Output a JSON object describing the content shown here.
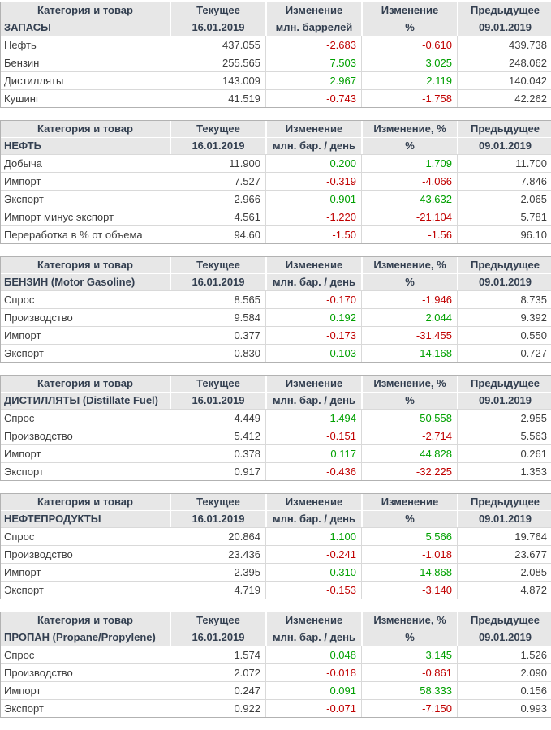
{
  "report_title": "EIA weekly petroleum data (Russian)",
  "colors": {
    "positive_change": "#00a000",
    "negative_change": "#c00000",
    "header_background": "#e7e7e7",
    "header_text": "#333f50",
    "body_text": "#3c3c3c"
  },
  "dates": {
    "current": "16.01.2019",
    "previous": "09.01.2019"
  },
  "tables": [
    {
      "id": "stocks",
      "header_row1": [
        "Категория и товар",
        "Текущее",
        "Изменение",
        "Изменение",
        "Предыдущее"
      ],
      "header_row2": [
        "ЗАПАСЫ",
        "16.01.2019",
        "млн. баррелей",
        "%",
        "09.01.2019"
      ],
      "rows": [
        [
          "Нефть",
          "437.055",
          "-2.683",
          "-0.610",
          "439.738"
        ],
        [
          "Бензин",
          "255.565",
          "7.503",
          "3.025",
          "248.062"
        ],
        [
          "Дистилляты",
          "143.009",
          "2.967",
          "2.119",
          "140.042"
        ],
        [
          "Кушинг",
          "41.519",
          "-0.743",
          "-1.758",
          "42.262"
        ]
      ]
    },
    {
      "id": "crude-oil",
      "header_row1": [
        "Категория и товар",
        "Текущее",
        "Изменение",
        "Изменение, %",
        "Предыдущее"
      ],
      "header_row2": [
        "НЕФТЬ",
        "16.01.2019",
        "млн. бар. / день",
        "%",
        "09.01.2019"
      ],
      "rows": [
        [
          "Добыча",
          "11.900",
          "0.200",
          "1.709",
          "11.700"
        ],
        [
          "Импорт",
          "7.527",
          "-0.319",
          "-4.066",
          "7.846"
        ],
        [
          "Экспорт",
          "2.966",
          "0.901",
          "43.632",
          "2.065"
        ],
        [
          "Импорт минус экспорт",
          "4.561",
          "-1.220",
          "-21.104",
          "5.781"
        ],
        [
          "Переработка в % от объема",
          "94.60",
          "-1.50",
          "-1.56",
          "96.10"
        ]
      ]
    },
    {
      "id": "gasoline",
      "header_row1": [
        "Категория и товар",
        "Текущее",
        "Изменение",
        "Изменение, %",
        "Предыдущее"
      ],
      "header_row2": [
        "БЕНЗИН (Motor Gasoline)",
        "16.01.2019",
        "млн. бар. / день",
        "%",
        "09.01.2019"
      ],
      "rows": [
        [
          "Спрос",
          "8.565",
          "-0.170",
          "-1.946",
          "8.735"
        ],
        [
          "Производство",
          "9.584",
          "0.192",
          "2.044",
          "9.392"
        ],
        [
          "Импорт",
          "0.377",
          "-0.173",
          "-31.455",
          "0.550"
        ],
        [
          "Экспорт",
          "0.830",
          "0.103",
          "14.168",
          "0.727"
        ]
      ]
    },
    {
      "id": "distillates",
      "header_row1": [
        "Категория и товар",
        "Текущее",
        "Изменение",
        "Изменение, %",
        "Предыдущее"
      ],
      "header_row2": [
        "ДИСТИЛЛЯТЫ (Distillate Fuel)",
        "16.01.2019",
        "млн. бар. / день",
        "%",
        "09.01.2019"
      ],
      "rows": [
        [
          "Спрос",
          "4.449",
          "1.494",
          "50.558",
          "2.955"
        ],
        [
          "Производство",
          "5.412",
          "-0.151",
          "-2.714",
          "5.563"
        ],
        [
          "Импорт",
          "0.378",
          "0.117",
          "44.828",
          "0.261"
        ],
        [
          "Экспорт",
          "0.917",
          "-0.436",
          "-32.225",
          "1.353"
        ]
      ]
    },
    {
      "id": "petroleum-products",
      "header_row1": [
        "Категория и товар",
        "Текущее",
        "Изменение",
        "Изменение",
        "Предыдущее"
      ],
      "header_row2": [
        "НЕФТЕПРОДУКТЫ",
        "16.01.2019",
        "млн. бар. / день",
        "%",
        "09.01.2019"
      ],
      "rows": [
        [
          "Спрос",
          "20.864",
          "1.100",
          "5.566",
          "19.764"
        ],
        [
          "Производство",
          "23.436",
          "-0.241",
          "-1.018",
          "23.677"
        ],
        [
          "Импорт",
          "2.395",
          "0.310",
          "14.868",
          "2.085"
        ],
        [
          "Экспорт",
          "4.719",
          "-0.153",
          "-3.140",
          "4.872"
        ]
      ]
    },
    {
      "id": "propane",
      "header_row1": [
        "Категория и товар",
        "Текущее",
        "Изменение",
        "Изменение, %",
        "Предыдущее"
      ],
      "header_row2": [
        "ПРОПАН (Propane/Propylene)",
        "16.01.2019",
        "млн. бар. / день",
        "%",
        "09.01.2019"
      ],
      "rows": [
        [
          "Спрос",
          "1.574",
          "0.048",
          "3.145",
          "1.526"
        ],
        [
          "Производство",
          "2.072",
          "-0.018",
          "-0.861",
          "2.090"
        ],
        [
          "Импорт",
          "0.247",
          "0.091",
          "58.333",
          "0.156"
        ],
        [
          "Экспорт",
          "0.922",
          "-0.071",
          "-7.150",
          "0.993"
        ]
      ]
    }
  ]
}
